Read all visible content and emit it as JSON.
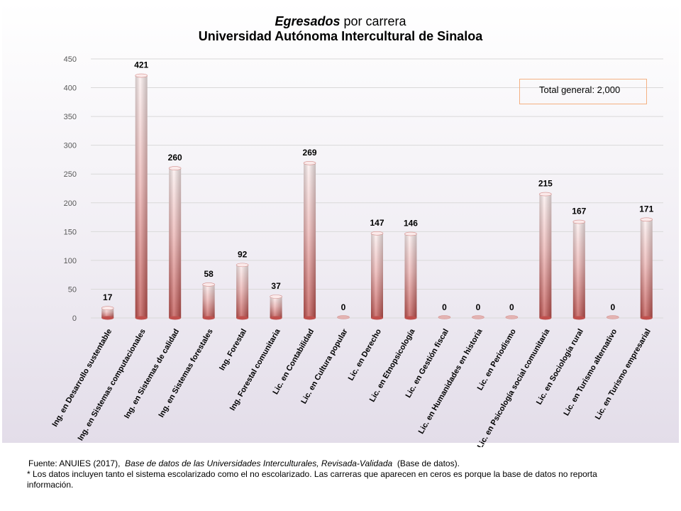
{
  "chart_data": {
    "type": "bar",
    "title_italic": "Egresados",
    "title_rest": " por carrera",
    "subtitle": "Universidad Autónoma Intercultural de Sinaloa",
    "ylim": [
      0,
      450
    ],
    "yticks": [
      0,
      50,
      100,
      150,
      200,
      250,
      300,
      350,
      400,
      450
    ],
    "grid": true,
    "categories": [
      "Ing. en Desarrollo sustentable",
      "Ing. en Sistemas computacionales",
      "Ing. en Sistemas de calidad",
      "Ing. en Sistemas forestales",
      "Ing. Forestal",
      "Ing. Forestal comunitaria",
      "Lic. en Contabilidad",
      "Lic. en Cultura popular",
      "Lic. en Derecho",
      "Lic. en Etnopsicología",
      "Lic. en Gestión fiscal",
      "Lic. en Humanidades en historia",
      "Lic. en Periodismo",
      "Lic. en Psicología social comunitaria",
      "Lic. en Sociología rural",
      "Lic. en Turismo alternativo",
      "Lic. en Turismo empresarial"
    ],
    "values": [
      17,
      421,
      260,
      58,
      92,
      37,
      269,
      0,
      147,
      146,
      0,
      0,
      0,
      215,
      167,
      0,
      171
    ],
    "annotation": "Total general: 2,000",
    "colors": {
      "bar_top": "#fbe8e8",
      "bar_bottom": "#c0504d",
      "grid": "#d9d9d9",
      "box_border": "#f4b183"
    }
  },
  "footer": {
    "source_prefix": "Fuente: ANUIES (2017),",
    "source_title": "Base de datos de las Universidades Interculturales, Revisada-Validada",
    "source_suffix": "(Base de datos).",
    "note": "* Los datos incluyen tanto el sistema escolarizado como el no escolarizado. Las carreras que aparecen en ceros es porque la base de datos no reporta información."
  }
}
